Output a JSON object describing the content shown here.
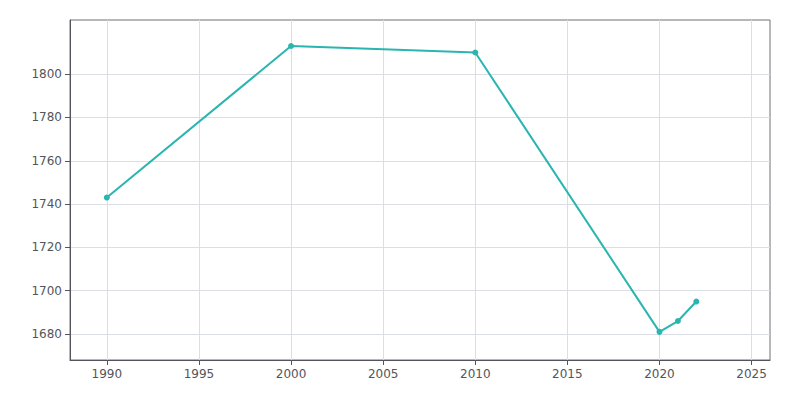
{
  "chart_data": {
    "type": "line",
    "x": [
      1990,
      2000,
      2010,
      2020,
      2021,
      2022
    ],
    "values": [
      1743,
      1813,
      1810,
      1681,
      1686,
      1695
    ],
    "color": "#2ab5b0",
    "marker": "circle",
    "xlim": [
      1988,
      2026
    ],
    "xticks": [
      1990,
      1995,
      2000,
      2005,
      2010,
      2015,
      2020,
      2025
    ],
    "ylim": [
      1668,
      1825
    ],
    "yticks": [
      1680,
      1700,
      1720,
      1740,
      1760,
      1780,
      1800
    ],
    "grid": true
  }
}
